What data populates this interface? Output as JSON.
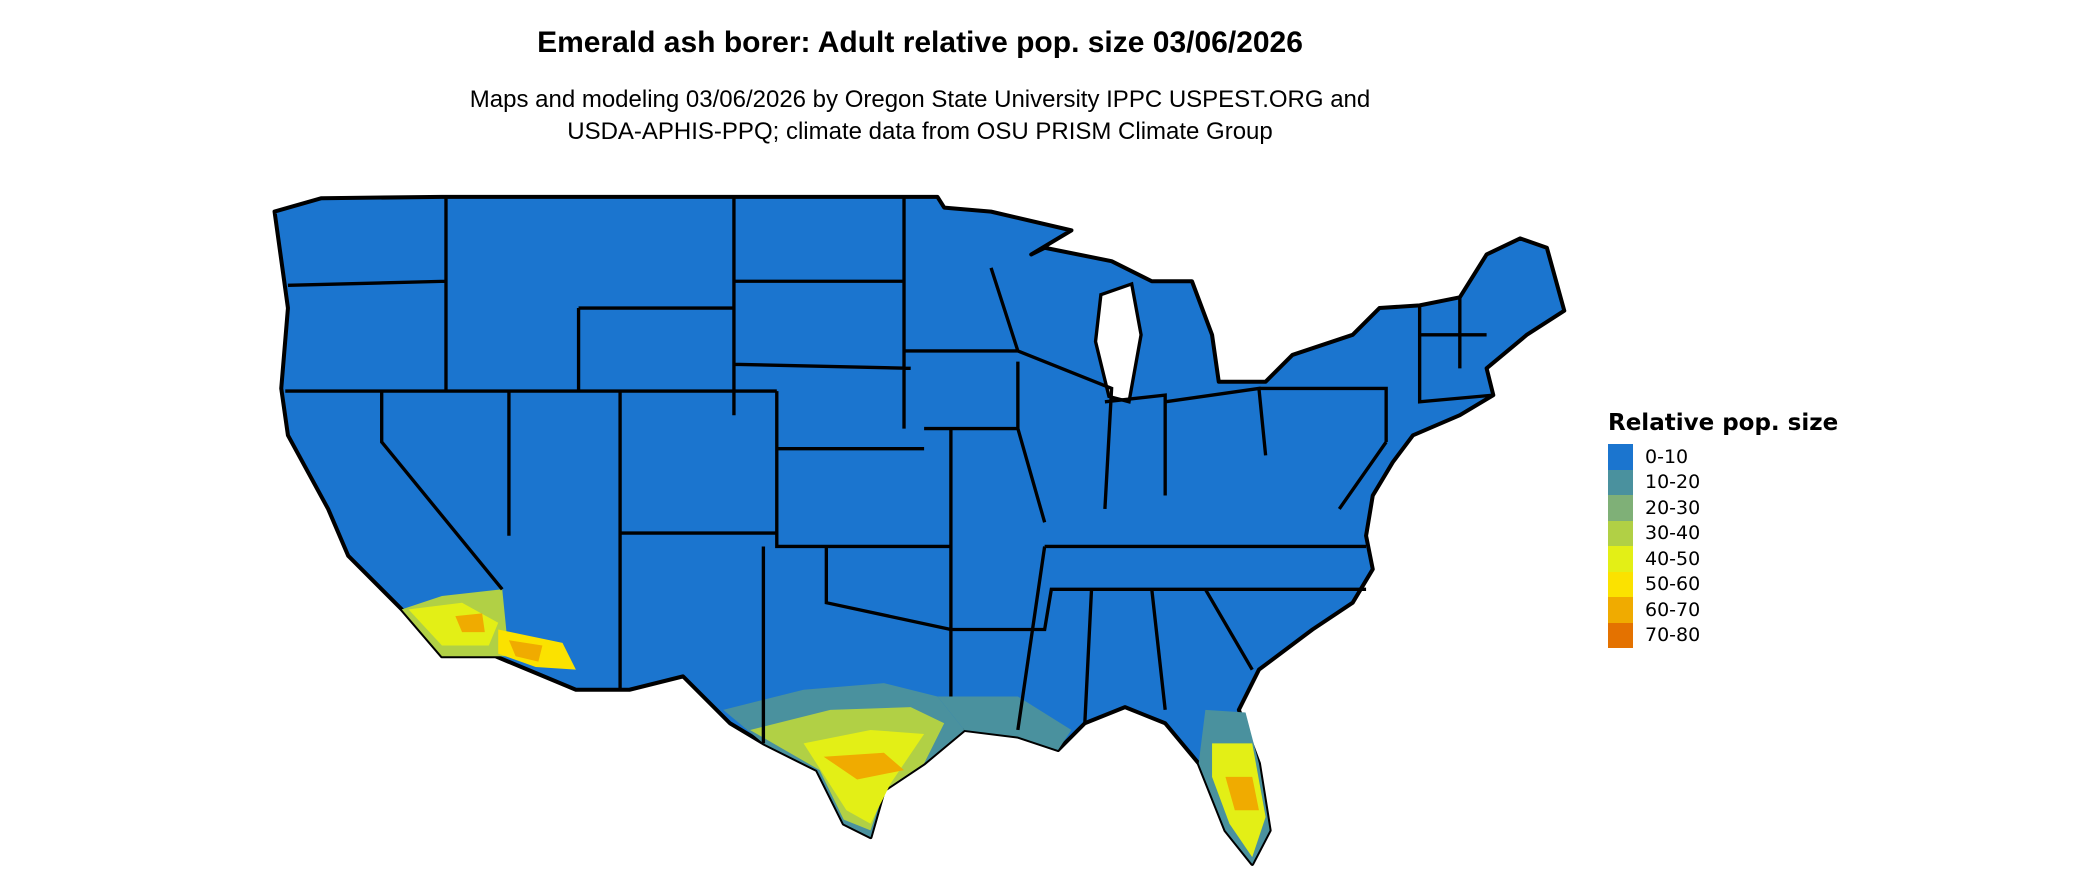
{
  "title": "Emerald ash borer: Adult relative pop. size 03/06/2026",
  "subtitle_line1": "Maps and modeling 03/06/2026 by Oregon State University IPPC USPEST.ORG and",
  "subtitle_line2": "USDA-APHIS-PPQ; climate data from OSU PRISM Climate Group",
  "chart_data": {
    "type": "choropleth map",
    "region": "Contiguous United States",
    "legend_title": "Relative pop. size",
    "legend_placement": "right",
    "legend": [
      {
        "label": "0-10",
        "color": "#1b75cf"
      },
      {
        "label": "10-20",
        "color": "#4a919e"
      },
      {
        "label": "20-30",
        "color": "#7fb077"
      },
      {
        "label": "30-40",
        "color": "#b1d045"
      },
      {
        "label": "40-50",
        "color": "#e3ef16"
      },
      {
        "label": "50-60",
        "color": "#fbe200"
      },
      {
        "label": "60-70",
        "color": "#f0ab00"
      },
      {
        "label": "70-80",
        "color": "#e47200"
      }
    ],
    "dominant_class": "0-10",
    "hotspots": [
      "southern California",
      "southwestern Arizona",
      "southern Texas",
      "Gulf coast Louisiana",
      "peninsular Florida"
    ]
  }
}
